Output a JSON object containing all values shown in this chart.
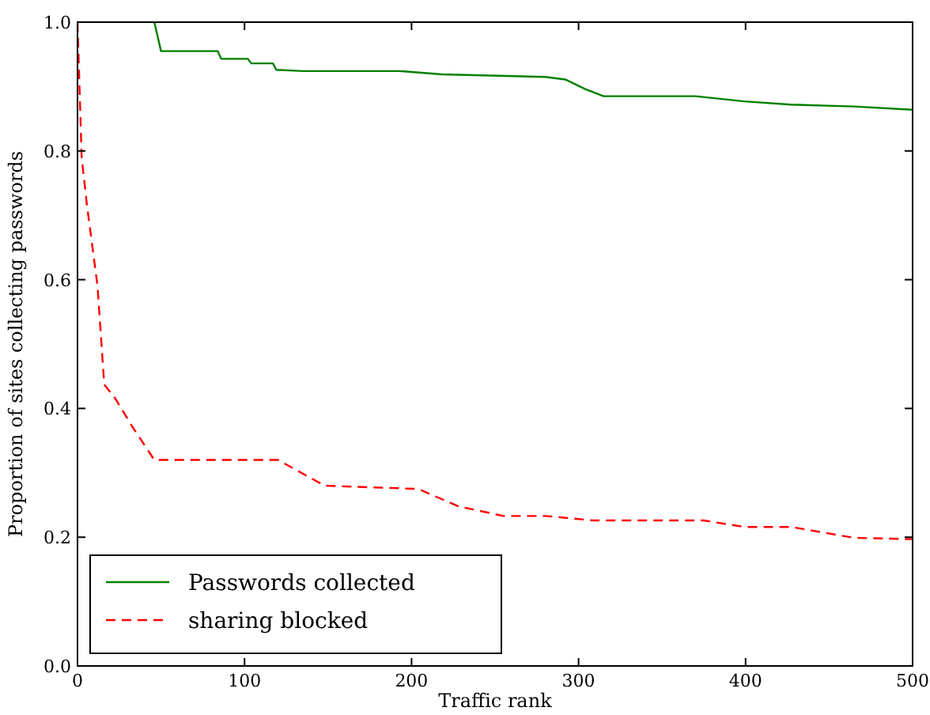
{
  "chart_data": {
    "type": "line",
    "xlabel": "Traffic rank",
    "ylabel": "Proportion of sites collecting passwords",
    "xlim": [
      0,
      500
    ],
    "xticks": [
      0,
      100,
      200,
      300,
      400,
      500
    ],
    "ylim": [
      0,
      1
    ],
    "yticks": [
      {
        "value": 0,
        "label": "0.0"
      },
      {
        "value": 0.2,
        "label": "0.2"
      },
      {
        "value": 0.4,
        "label": "0.4"
      },
      {
        "value": 0.6,
        "label": "0.6"
      },
      {
        "value": 0.8,
        "label": "0.8"
      },
      {
        "value": 1,
        "label": "1.0"
      }
    ],
    "grid": false,
    "legend": "bottom left",
    "series": [
      {
        "name": "Passwords collected",
        "color": "#008000",
        "line_style": "solid",
        "x": [
          46,
          50,
          84,
          86,
          102,
          104,
          117,
          119,
          135,
          193,
          218,
          280,
          292,
          304,
          315,
          370,
          399,
          427,
          465,
          500
        ],
        "values": [
          1.0,
          0.955,
          0.955,
          0.943,
          0.943,
          0.936,
          0.936,
          0.926,
          0.924,
          0.924,
          0.919,
          0.915,
          0.911,
          0.896,
          0.885,
          0.885,
          0.877,
          0.872,
          0.869,
          0.864
        ]
      },
      {
        "name": "sharing blocked",
        "color": "#ff0000",
        "line_style": "dashed",
        "x": [
          0,
          2.5,
          5.7,
          12,
          16,
          22,
          33,
          46,
          120,
          148,
          204,
          228,
          255,
          280,
          309,
          375,
          399,
          427,
          465,
          500
        ],
        "values": [
          1.0,
          0.79,
          0.715,
          0.59,
          0.437,
          0.418,
          0.371,
          0.32,
          0.32,
          0.28,
          0.275,
          0.248,
          0.233,
          0.233,
          0.226,
          0.226,
          0.216,
          0.216,
          0.199,
          0.197
        ]
      }
    ]
  }
}
